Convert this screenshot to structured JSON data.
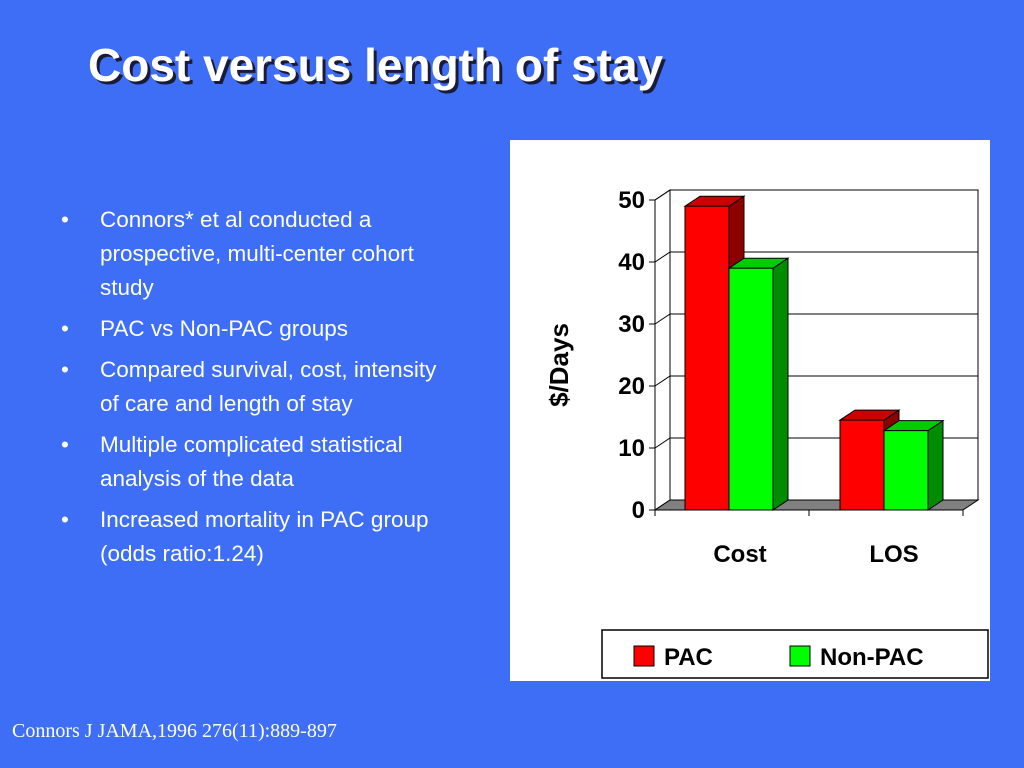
{
  "slide": {
    "title": "Cost versus length of stay",
    "bullets": [
      "Connors* et al conducted a prospective, multi-center cohort study",
      "PAC vs Non-PAC groups",
      "Compared survival, cost, intensity of care and length of stay",
      "Multiple complicated statistical analysis of the data",
      "Increased mortality in PAC group (odds ratio:1.24)"
    ],
    "bullet_char": "•",
    "footer": "Connors J JAMA,1996 276(11):889-897"
  },
  "chart_data": {
    "type": "bar",
    "style": "3d",
    "categories": [
      "Cost",
      "LOS"
    ],
    "series": [
      {
        "name": "PAC",
        "values": [
          49,
          14.5
        ],
        "color": "#ff0000"
      },
      {
        "name": "Non-PAC",
        "values": [
          39,
          12.8
        ],
        "color": "#00ff00"
      }
    ],
    "title": "",
    "xlabel": "",
    "ylabel": "$/Days",
    "ylim": [
      0,
      50
    ],
    "yticks": [
      "0",
      "10",
      "20",
      "30",
      "40",
      "50"
    ],
    "grid": true,
    "legend": "bottom-right"
  }
}
